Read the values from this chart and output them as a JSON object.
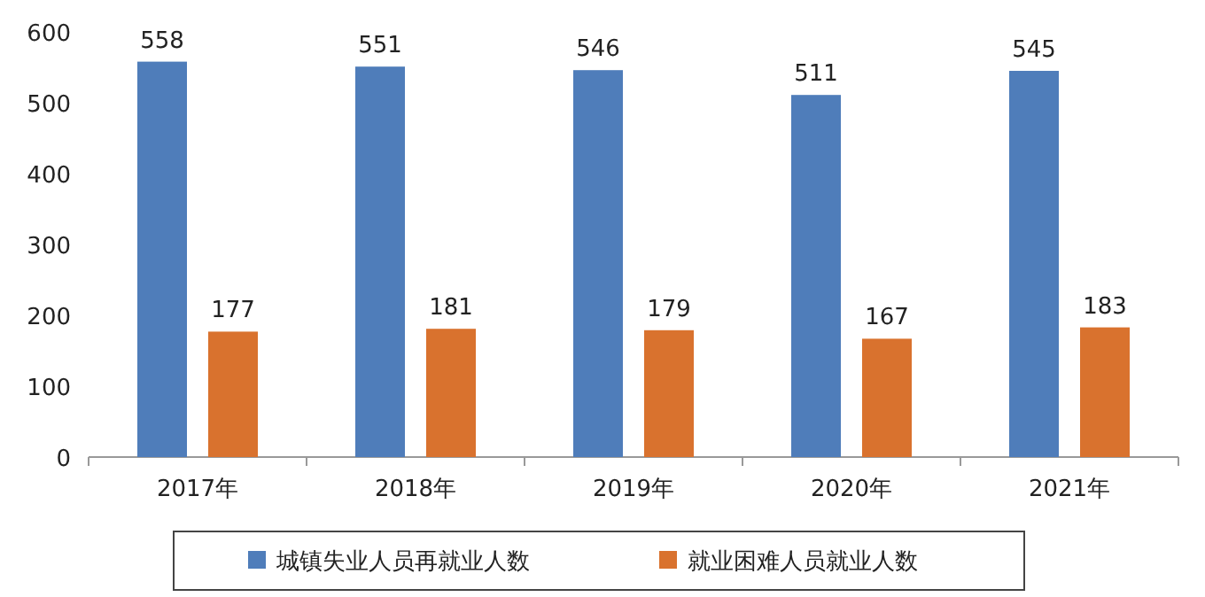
{
  "chart_data": {
    "type": "bar",
    "categories": [
      "2017年",
      "2018年",
      "2019年",
      "2020年",
      "2021年"
    ],
    "series": [
      {
        "name": "城镇失业人员再就业人数",
        "color": "#4f7dba",
        "values": [
          558,
          551,
          546,
          511,
          545
        ]
      },
      {
        "name": "就业困难人员就业人数",
        "color": "#d9722e",
        "values": [
          177,
          181,
          179,
          167,
          183
        ]
      }
    ],
    "ylim": [
      0,
      600
    ],
    "yticks": [
      0,
      100,
      200,
      300,
      400,
      500,
      600
    ],
    "data_labels": true,
    "legend": "bottom"
  }
}
